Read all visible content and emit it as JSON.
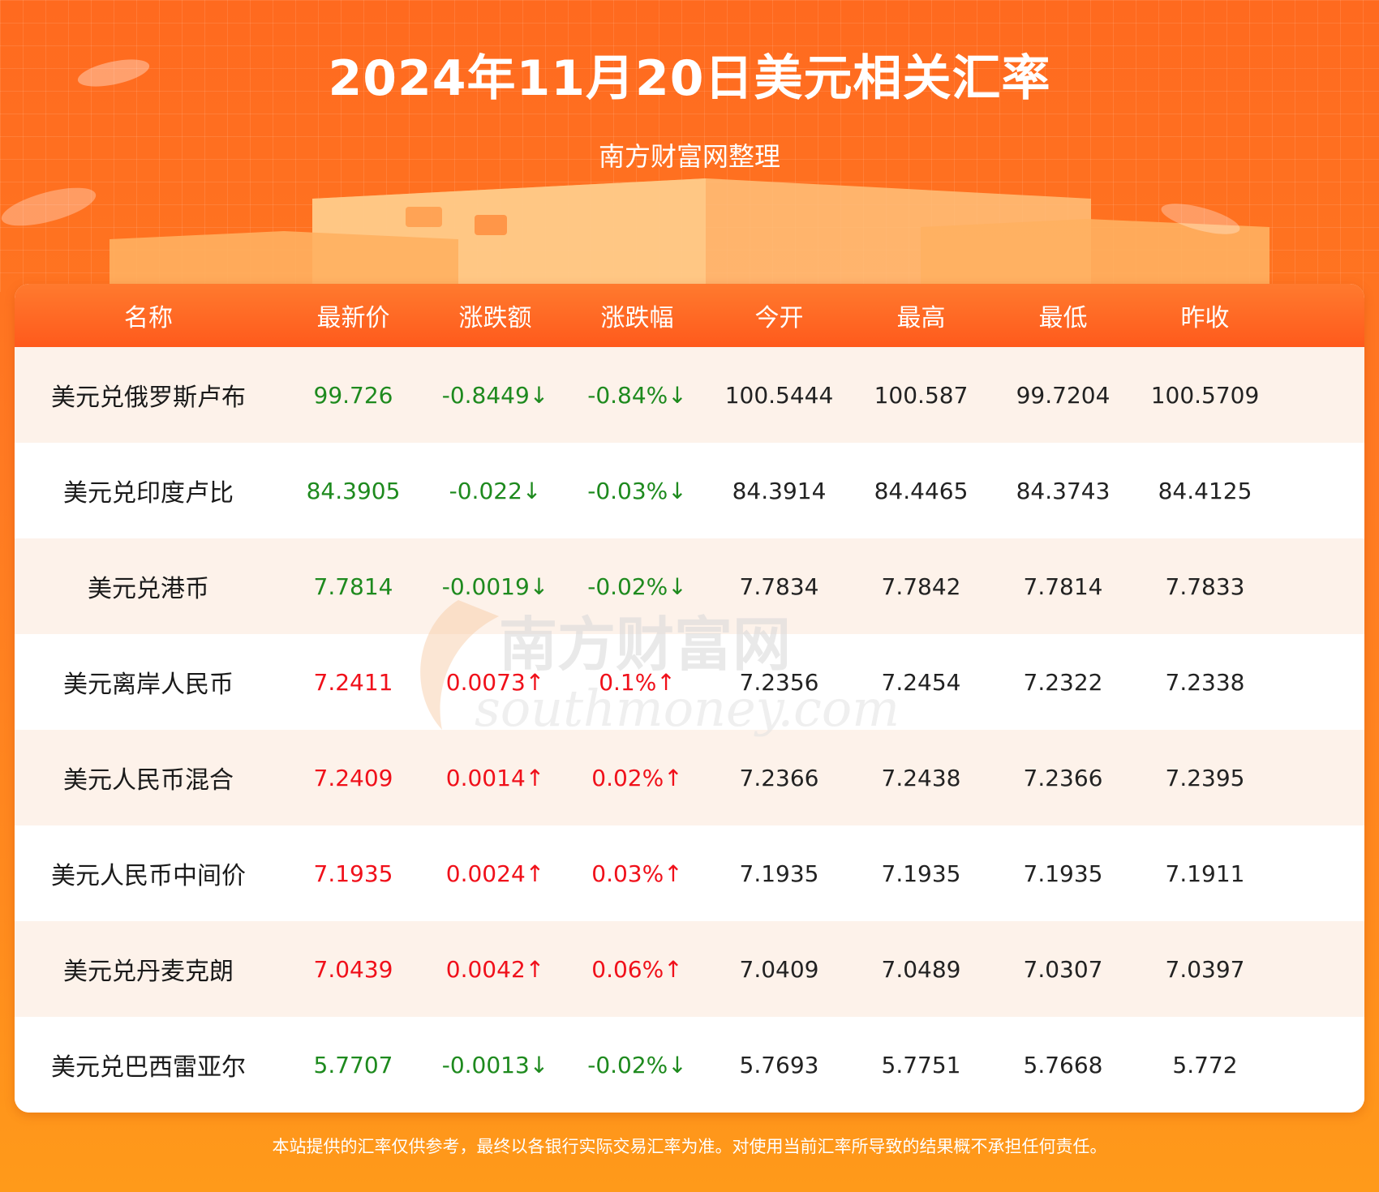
{
  "header": {
    "title": "2024年11月20日美元相关汇率",
    "subtitle": "南方财富网整理"
  },
  "table": {
    "columns": [
      "名称",
      "最新价",
      "涨跌额",
      "涨跌幅",
      "今开",
      "最高",
      "最低",
      "昨收"
    ],
    "rows": [
      {
        "trend": "down",
        "cells": [
          "美元兑俄罗斯卢布",
          "99.726",
          "-0.8449↓",
          "-0.84%↓",
          "100.5444",
          "100.587",
          "99.7204",
          "100.5709"
        ]
      },
      {
        "trend": "down",
        "cells": [
          "美元兑印度卢比",
          "84.3905",
          "-0.022↓",
          "-0.03%↓",
          "84.3914",
          "84.4465",
          "84.3743",
          "84.4125"
        ]
      },
      {
        "trend": "down",
        "cells": [
          "美元兑港币",
          "7.7814",
          "-0.0019↓",
          "-0.02%↓",
          "7.7834",
          "7.7842",
          "7.7814",
          "7.7833"
        ]
      },
      {
        "trend": "up",
        "cells": [
          "美元离岸人民币",
          "7.2411",
          "0.0073↑",
          "0.1%↑",
          "7.2356",
          "7.2454",
          "7.2322",
          "7.2338"
        ]
      },
      {
        "trend": "up",
        "cells": [
          "美元人民币混合",
          "7.2409",
          "0.0014↑",
          "0.02%↑",
          "7.2366",
          "7.2438",
          "7.2366",
          "7.2395"
        ]
      },
      {
        "trend": "up",
        "cells": [
          "美元人民币中间价",
          "7.1935",
          "0.0024↑",
          "0.03%↑",
          "7.1935",
          "7.1935",
          "7.1935",
          "7.1911"
        ]
      },
      {
        "trend": "up",
        "cells": [
          "美元兑丹麦克朗",
          "7.0439",
          "0.0042↑",
          "0.06%↑",
          "7.0409",
          "7.0489",
          "7.0307",
          "7.0397"
        ]
      },
      {
        "trend": "down",
        "cells": [
          "美元兑巴西雷亚尔",
          "5.7707",
          "-0.0013↓",
          "-0.02%↓",
          "5.7693",
          "5.7751",
          "5.7668",
          "5.772"
        ]
      }
    ]
  },
  "watermark": {
    "cn": "南方财富网",
    "en": "southmoney.com"
  },
  "colors": {
    "up": "#f0101a",
    "down": "#1e8a1e",
    "header_bg": "#ff5a1c",
    "row_alt": "#fdf2ea"
  },
  "footer": {
    "disclaimer": "本站提供的汇率仅供参考，最终以各银行实际交易汇率为准。对使用当前汇率所导致的结果概不承担任何责任。"
  }
}
